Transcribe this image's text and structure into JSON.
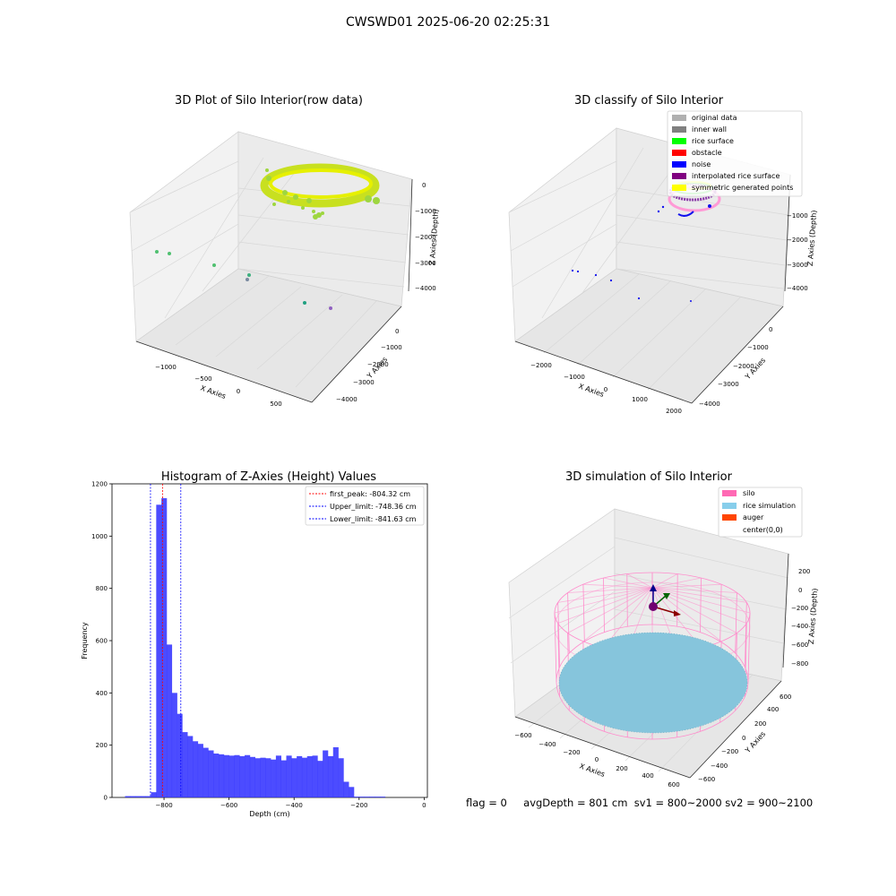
{
  "suptitle": "CWSWD01 2025-06-20 02:25:31",
  "panel1": {
    "title": "3D Plot of Silo Interior(row data)",
    "xlabel": "X Axies",
    "ylabel": "Y Axies",
    "zlabel": "Z Axies (Depth)",
    "xticks": [
      "−1000",
      "−500",
      "0",
      "500"
    ],
    "yticks": [
      "−4000",
      "−3000",
      "−2000",
      "−1000",
      "0"
    ],
    "zticks": [
      "0",
      "−1000",
      "−2000",
      "−3000",
      "−4000"
    ]
  },
  "panel2": {
    "title": "3D classify of Silo Interior",
    "xlabel": "X Axies",
    "ylabel": "Y Axies",
    "zlabel": "Z Axies (Depth)",
    "xticks": [
      "−2000",
      "−1000",
      "0",
      "1000",
      "2000"
    ],
    "yticks": [
      "−4000",
      "−3000",
      "−2000",
      "−1000",
      "0"
    ],
    "zticks": [
      "−1000",
      "−2000",
      "−3000",
      "−4000"
    ],
    "legend": [
      {
        "label": "original data",
        "color": "#b0b0b0"
      },
      {
        "label": "inner wall",
        "color": "#808080"
      },
      {
        "label": "rice surface",
        "color": "#00ff00"
      },
      {
        "label": "obstacle",
        "color": "#ff0000"
      },
      {
        "label": "noise",
        "color": "#0000ff"
      },
      {
        "label": "interpolated rice surface",
        "color": "#800080"
      },
      {
        "label": "symmetric generated points",
        "color": "#ffff00"
      }
    ]
  },
  "panel4": {
    "title": "3D simulation of Silo Interior",
    "xlabel": "X Axies",
    "ylabel": "Y Axies",
    "zlabel": "Z Axies (Depth)",
    "xticks": [
      "−600",
      "−400",
      "−200",
      "0",
      "200",
      "400",
      "600"
    ],
    "yticks": [
      "−600",
      "−400",
      "−200",
      "0",
      "200",
      "400",
      "600"
    ],
    "zticks": [
      "200",
      "0",
      "−200",
      "−400",
      "−600",
      "−800"
    ],
    "legend": [
      {
        "label": "silo",
        "color": "#ff69b4"
      },
      {
        "label": "rice simulation",
        "color": "#87ceeb"
      },
      {
        "label": "auger",
        "color": "#ff4500"
      },
      {
        "label": "center(0,0)",
        "color": "#ffffff"
      }
    ]
  },
  "footer": {
    "flag": "flag = 0",
    "avg": "avgDepth = 801 cm",
    "sv1": "sv1 = 800~2000",
    "sv2": "sv2 = 900~2100"
  },
  "chart_data": {
    "type": "bar",
    "title": "Histogram of Z-Axies (Height) Values",
    "xlabel": "Depth (cm)",
    "ylabel": "Frequency",
    "xlim": [
      -960,
      10
    ],
    "ylim": [
      0,
      1200
    ],
    "xticks": [
      -800,
      -600,
      -400,
      -200,
      0
    ],
    "yticks": [
      0,
      200,
      400,
      600,
      800,
      1000,
      1200
    ],
    "bar_color": "#3333ff",
    "bin_start": -920,
    "bin_width": 16,
    "values": [
      5,
      5,
      5,
      5,
      5,
      20,
      1120,
      1145,
      585,
      400,
      320,
      250,
      235,
      215,
      205,
      190,
      180,
      168,
      165,
      162,
      160,
      162,
      158,
      162,
      155,
      150,
      152,
      150,
      145,
      160,
      142,
      160,
      150,
      158,
      152,
      158,
      160,
      140,
      180,
      158,
      192,
      150,
      60,
      40,
      3,
      3,
      3,
      3,
      3,
      3
    ],
    "vlines": [
      {
        "x": -804.32,
        "label": "first_peak: -804.32 cm",
        "color": "#ff0000"
      },
      {
        "x": -748.36,
        "label": "Upper_limit: -748.36 cm",
        "color": "#0000ff"
      },
      {
        "x": -841.63,
        "label": "Lower_limit: -841.63 cm",
        "color": "#0000ff"
      }
    ]
  }
}
